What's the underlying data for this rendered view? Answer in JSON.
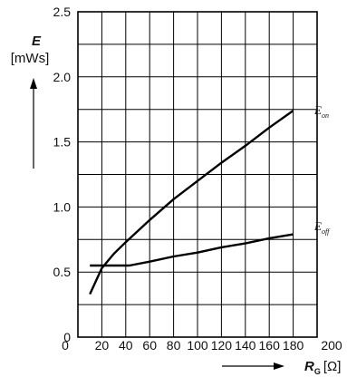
{
  "chart_data": {
    "type": "line",
    "xlim": [
      0,
      200
    ],
    "ylim": [
      0,
      2.5
    ],
    "x_ticks": [
      "0",
      "20",
      "40",
      "60",
      "80",
      "100",
      "120",
      "140",
      "160",
      "180",
      "200"
    ],
    "y_ticks": [
      "0",
      "0.5",
      "1.0",
      "1.5",
      "2.0",
      "2.5"
    ],
    "x_grid_step": 20,
    "y_grid_step": 0.25,
    "grid": true,
    "ylabel": {
      "symbol": "E",
      "unit": "[mWs]"
    },
    "xlabel": {
      "symbol": "R",
      "subscript": "G",
      "unit": "[Ω]"
    },
    "series": [
      {
        "name": "E",
        "subscript": "on",
        "x": [
          10,
          20,
          30,
          40,
          60,
          80,
          100,
          120,
          140,
          160,
          180
        ],
        "y": [
          0.33,
          0.53,
          0.64,
          0.73,
          0.9,
          1.06,
          1.2,
          1.34,
          1.47,
          1.61,
          1.74
        ]
      },
      {
        "name": "E",
        "subscript": "off",
        "x": [
          10,
          20,
          30,
          43,
          60,
          80,
          100,
          120,
          140,
          160,
          180
        ],
        "y": [
          0.55,
          0.55,
          0.55,
          0.55,
          0.58,
          0.62,
          0.65,
          0.69,
          0.72,
          0.76,
          0.79
        ]
      }
    ]
  }
}
